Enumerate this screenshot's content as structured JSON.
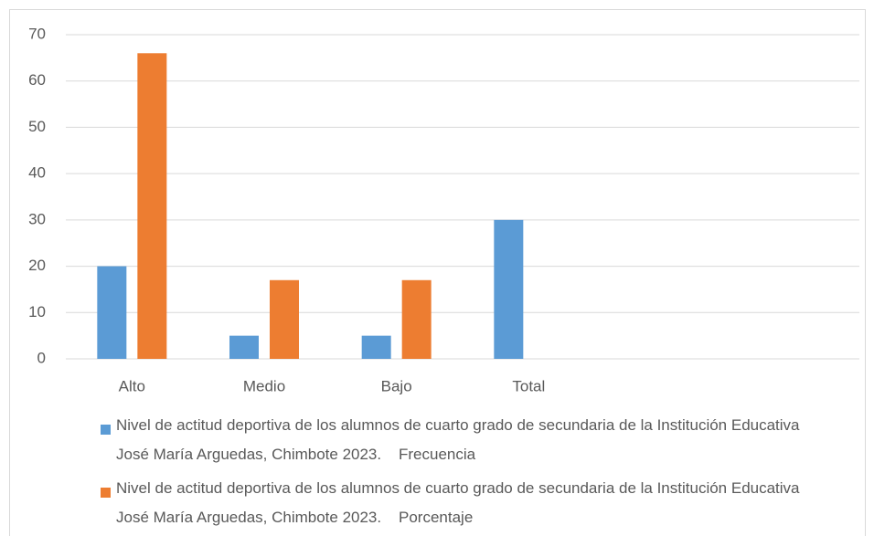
{
  "chart_data": {
    "type": "bar",
    "categories": [
      "Alto",
      "Medio",
      "Bajo",
      "Total",
      null,
      null
    ],
    "series": [
      {
        "name": "Nivel de actitud deportiva de los alumnos de cuarto grado de secundaria de la Institución Educativa José María Arguedas, Chimbote 2023.    Frecuencia",
        "color": "#5b9bd5",
        "values": [
          20,
          5,
          5,
          30,
          null,
          null
        ]
      },
      {
        "name": "Nivel de actitud deportiva de los alumnos de cuarto grado de secundaria de la Institución Educativa José María Arguedas, Chimbote 2023.    Porcentaje",
        "color": "#ed7d31",
        "values": [
          66,
          17,
          17,
          null,
          null,
          null
        ]
      }
    ],
    "ylim": [
      0,
      70
    ],
    "yticks": [
      0,
      10,
      20,
      30,
      40,
      50,
      60,
      70
    ],
    "grid": true,
    "legend": "bottom"
  }
}
